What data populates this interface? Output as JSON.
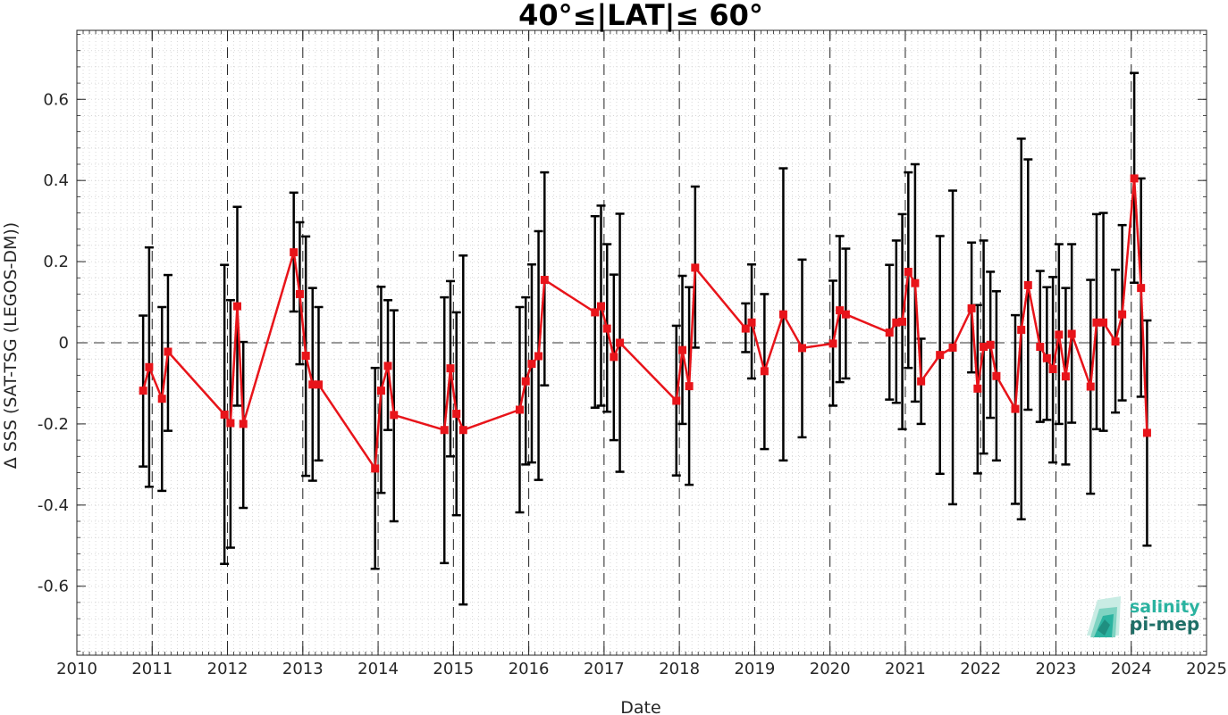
{
  "chart_data": {
    "type": "line",
    "title": "40°≤|LAT|≤ 60°",
    "xlabel": "Date",
    "ylabel": "Δ SSS (SAT-TSG (LEGOS-DM))",
    "xlim": [
      2010,
      2025
    ],
    "ylim": [
      -0.77,
      0.77
    ],
    "xticks": [
      "2010",
      "2011",
      "2012",
      "2013",
      "2014",
      "2015",
      "2016",
      "2017",
      "2018",
      "2019",
      "2020",
      "2021",
      "2022",
      "2023",
      "2024",
      "2025"
    ],
    "yticks": [
      "0.6",
      "0.4",
      "0.2",
      "0",
      "-0.2",
      "-0.4",
      "-0.6"
    ],
    "ytick_values": [
      0.6,
      0.4,
      0.2,
      0,
      -0.2,
      -0.4,
      -0.6
    ],
    "grid": "minor dotted",
    "zero_line": "dashed",
    "year_lines": "dashed",
    "series": [
      {
        "color": "#e8141a",
        "errorbar_color": "#000000",
        "marker": "square",
        "x": [
          2010.88,
          2010.96,
          2011.13,
          2011.21,
          2011.96,
          2012.04,
          2012.13,
          2012.21,
          2012.88,
          2012.96,
          2013.04,
          2013.13,
          2013.21,
          2013.96,
          2014.04,
          2014.13,
          2014.21,
          2014.88,
          2014.96,
          2015.04,
          2015.13,
          2015.88,
          2015.96,
          2016.04,
          2016.13,
          2016.21,
          2016.88,
          2016.96,
          2017.04,
          2017.13,
          2017.21,
          2017.96,
          2018.04,
          2018.13,
          2018.21,
          2018.88,
          2018.96,
          2019.13,
          2019.38,
          2019.63,
          2020.04,
          2020.13,
          2020.21,
          2020.79,
          2020.88,
          2020.96,
          2021.04,
          2021.13,
          2021.21,
          2021.46,
          2021.63,
          2021.88,
          2021.96,
          2022.04,
          2022.13,
          2022.21,
          2022.46,
          2022.54,
          2022.63,
          2022.79,
          2022.88,
          2022.96,
          2023.04,
          2023.13,
          2023.21,
          2023.46,
          2023.54,
          2023.63,
          2023.79,
          2023.88,
          2024.04,
          2024.13,
          2024.21
        ],
        "y": [
          -0.118,
          -0.06,
          -0.138,
          -0.022,
          -0.177,
          -0.198,
          0.09,
          -0.2,
          0.223,
          0.12,
          -0.032,
          -0.103,
          -0.103,
          -0.31,
          -0.118,
          -0.057,
          -0.178,
          -0.215,
          -0.063,
          -0.175,
          -0.215,
          -0.165,
          -0.095,
          -0.052,
          -0.033,
          0.155,
          0.075,
          0.09,
          0.035,
          -0.035,
          0.0,
          -0.143,
          -0.018,
          -0.107,
          0.185,
          0.035,
          0.05,
          -0.07,
          0.07,
          -0.013,
          -0.002,
          0.08,
          0.07,
          0.025,
          0.05,
          0.052,
          0.175,
          0.147,
          -0.095,
          -0.03,
          -0.012,
          0.085,
          -0.113,
          -0.01,
          -0.005,
          -0.082,
          -0.163,
          0.032,
          0.142,
          -0.01,
          -0.038,
          -0.065,
          0.02,
          -0.083,
          0.022,
          -0.108,
          0.05,
          0.05,
          0.003,
          0.07,
          0.405,
          0.135,
          -0.222
        ],
        "err_low": [
          -0.305,
          -0.355,
          -0.365,
          -0.217,
          -0.545,
          -0.505,
          -0.155,
          -0.407,
          0.077,
          -0.053,
          -0.328,
          -0.34,
          -0.29,
          -0.557,
          -0.37,
          -0.215,
          -0.44,
          -0.543,
          -0.28,
          -0.425,
          -0.645,
          -0.418,
          -0.3,
          -0.295,
          -0.338,
          -0.105,
          -0.16,
          -0.155,
          -0.17,
          -0.24,
          -0.318,
          -0.327,
          -0.2,
          -0.35,
          -0.012,
          -0.023,
          -0.088,
          -0.262,
          -0.29,
          -0.233,
          -0.155,
          -0.097,
          -0.088,
          -0.14,
          -0.148,
          -0.213,
          -0.062,
          -0.145,
          -0.2,
          -0.323,
          -0.398,
          -0.073,
          -0.322,
          -0.273,
          -0.185,
          -0.29,
          -0.397,
          -0.435,
          -0.165,
          -0.195,
          -0.19,
          -0.295,
          -0.2,
          -0.3,
          -0.197,
          -0.372,
          -0.213,
          -0.217,
          -0.172,
          -0.142,
          0.148,
          -0.133,
          -0.5
        ],
        "err_high": [
          0.067,
          0.235,
          0.088,
          0.167,
          0.192,
          0.105,
          0.335,
          0.002,
          0.37,
          0.297,
          0.262,
          0.135,
          0.088,
          -0.062,
          0.138,
          0.105,
          0.08,
          0.112,
          0.152,
          0.075,
          0.215,
          0.088,
          0.112,
          0.193,
          0.275,
          0.42,
          0.312,
          0.338,
          0.243,
          0.168,
          0.318,
          0.042,
          0.165,
          0.137,
          0.385,
          0.097,
          0.193,
          0.12,
          0.43,
          0.205,
          0.153,
          0.263,
          0.232,
          0.192,
          0.252,
          0.317,
          0.42,
          0.44,
          0.01,
          0.263,
          0.375,
          0.247,
          0.093,
          0.252,
          0.175,
          0.127,
          0.068,
          0.503,
          0.452,
          0.177,
          0.137,
          0.162,
          0.243,
          0.135,
          0.243,
          0.155,
          0.317,
          0.32,
          0.18,
          0.29,
          0.665,
          0.405,
          0.055
        ]
      }
    ]
  },
  "logo": {
    "line1": "salinity",
    "line2": "pi-mep",
    "color_primary": "#2bb3a0",
    "color_secondary": "#1f6f67"
  }
}
